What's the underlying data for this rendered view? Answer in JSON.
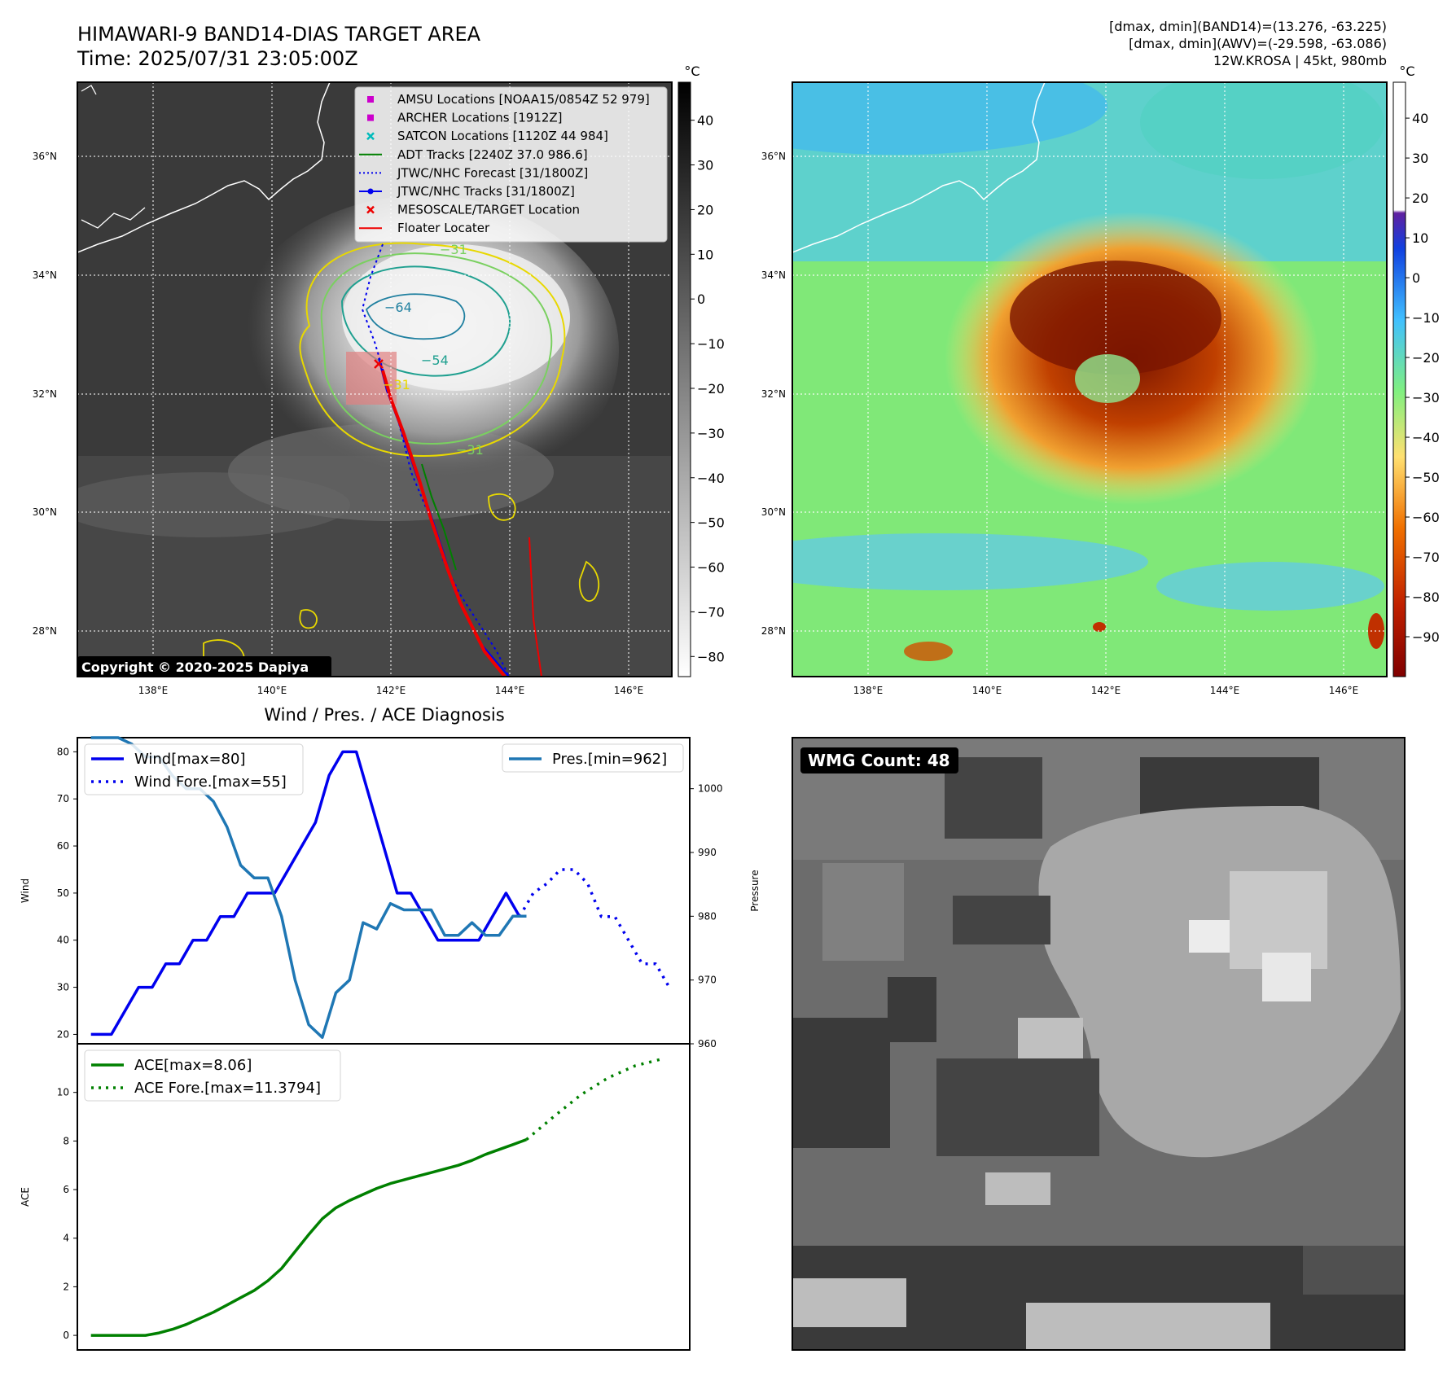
{
  "header": {
    "title_line1": "HIMAWARI-9 BAND14-DIAS TARGET AREA",
    "title_line2": "Time: 2025/07/31 23:05:00Z",
    "info_line1": "[dmax, dmin](BAND14)=(13.276, -63.225)",
    "info_line2": "[dmax, dmin](AWV)=(-29.598, -63.086)",
    "info_line3": "12W.KROSA | 45kt, 980mb"
  },
  "maps": {
    "lat_labels": [
      "36°N",
      "34°N",
      "32°N",
      "30°N",
      "28°N"
    ],
    "lon_labels": [
      "138°E",
      "140°E",
      "142°E",
      "144°E",
      "146°E"
    ],
    "copyright": "Copyright © 2020-2025 Dapiya",
    "contour_labels": [
      "−31",
      "−64",
      "−54",
      "−31",
      "−31"
    ],
    "colorbar1": {
      "unit": "°C",
      "ticks": [
        "40",
        "30",
        "20",
        "10",
        "0",
        "−10",
        "−20",
        "−30",
        "−40",
        "−50",
        "−60",
        "−70",
        "−80"
      ]
    },
    "colorbar2": {
      "unit": "°C",
      "ticks": [
        "40",
        "30",
        "20",
        "10",
        "0",
        "−10",
        "−20",
        "−30",
        "−40",
        "−50",
        "−60",
        "−70",
        "−80",
        "−90"
      ]
    },
    "legend": [
      {
        "label": "AMSU Locations [NOAA15/0854Z 52 979]",
        "marker": "square",
        "color": "#cc00cc"
      },
      {
        "label": "ARCHER Locations [1912Z]",
        "marker": "square",
        "color": "#cc00cc"
      },
      {
        "label": "SATCON Locations [1120Z 44 984]",
        "marker": "x",
        "color": "#00bbbb"
      },
      {
        "label": "ADT Tracks [2240Z 37.0 986.6]",
        "marker": "line",
        "color": "#008000"
      },
      {
        "label": "JTWC/NHC Forecast [31/1800Z]",
        "marker": "dotted",
        "color": "#0000ee"
      },
      {
        "label": "JTWC/NHC Tracks [31/1800Z]",
        "marker": "line-dot",
        "color": "#0000ee"
      },
      {
        "label": "MESOSCALE/TARGET Location",
        "marker": "x",
        "color": "#ee0000"
      },
      {
        "label": "Floater Locater",
        "marker": "line",
        "color": "#ee0000"
      }
    ]
  },
  "wmg": {
    "label": "WMG Count: 48"
  },
  "chart_data": [
    {
      "type": "line",
      "title": "Wind / Pres. / ACE Diagnosis",
      "ylabel": "Wind",
      "y2label": "Pressure",
      "ylim": [
        18,
        83
      ],
      "y2lim": [
        960,
        1008
      ],
      "yticks": [
        20,
        30,
        40,
        50,
        60,
        70,
        80
      ],
      "y2ticks": [
        960,
        970,
        980,
        990,
        1000
      ],
      "xlim": [
        -2,
        88
      ],
      "series": [
        {
          "name": "Wind[max=80]",
          "axis": "left",
          "style": "solid",
          "color": "#0000ee",
          "x": [
            0,
            3,
            5,
            7,
            9,
            11,
            13,
            15,
            17,
            19,
            21,
            23,
            25,
            27,
            29,
            31,
            33,
            35,
            37,
            39,
            41,
            43,
            45,
            47,
            49,
            51,
            53,
            55,
            57,
            59,
            61,
            63
          ],
          "values": [
            20,
            20,
            25,
            30,
            30,
            35,
            35,
            40,
            40,
            45,
            45,
            50,
            50,
            50,
            55,
            60,
            65,
            75,
            80,
            80,
            70,
            60,
            50,
            50,
            45,
            40,
            40,
            40,
            40,
            45,
            50,
            45
          ]
        },
        {
          "name": "Wind Fore.[max=55]",
          "axis": "left",
          "style": "dotted",
          "color": "#0000ee",
          "x": [
            63,
            65,
            67,
            69,
            71,
            73,
            75,
            77,
            79,
            81,
            83,
            85
          ],
          "values": [
            45,
            50,
            52,
            55,
            55,
            52,
            45,
            45,
            40,
            35,
            35,
            30
          ]
        },
        {
          "name": "Pres.[min=962]",
          "axis": "right",
          "style": "solid",
          "color": "#1f77b4",
          "x": [
            0,
            2,
            4,
            6,
            8,
            10,
            12,
            14,
            16,
            18,
            20,
            22,
            24,
            26,
            28,
            30,
            32,
            34,
            36,
            38,
            40,
            42,
            44,
            46,
            48,
            50,
            52,
            54,
            56,
            58,
            60,
            62,
            64
          ],
          "values": [
            1008,
            1008,
            1008,
            1007,
            1005,
            1005,
            1002,
            1000,
            1000,
            998,
            994,
            988,
            986,
            986,
            980,
            970,
            963,
            961,
            968,
            970,
            979,
            978,
            982,
            981,
            981,
            981,
            977,
            977,
            979,
            977,
            977,
            980,
            980
          ]
        }
      ]
    },
    {
      "type": "line",
      "ylabel": "ACE",
      "ylim": [
        -0.6,
        12
      ],
      "yticks": [
        0,
        2,
        4,
        6,
        8,
        10
      ],
      "xlim": [
        -2,
        88
      ],
      "series": [
        {
          "name": "ACE[max=8.06]",
          "style": "solid",
          "color": "#008000",
          "x": [
            0,
            4,
            8,
            10,
            12,
            14,
            16,
            18,
            20,
            22,
            24,
            26,
            28,
            30,
            32,
            34,
            36,
            38,
            40,
            42,
            44,
            46,
            48,
            50,
            52,
            54,
            56,
            58,
            60,
            62,
            64
          ],
          "values": [
            0,
            0,
            0,
            0.1,
            0.25,
            0.45,
            0.7,
            0.95,
            1.25,
            1.55,
            1.85,
            2.25,
            2.75,
            3.45,
            4.15,
            4.8,
            5.25,
            5.55,
            5.8,
            6.05,
            6.25,
            6.4,
            6.55,
            6.7,
            6.85,
            7.0,
            7.2,
            7.45,
            7.65,
            7.85,
            8.06
          ]
        },
        {
          "name": "ACE Fore.[max=11.3794]",
          "style": "dotted",
          "color": "#008000",
          "x": [
            64,
            68,
            72,
            76,
            80,
            84
          ],
          "values": [
            8.06,
            9.0,
            9.9,
            10.6,
            11.1,
            11.38
          ]
        }
      ]
    }
  ]
}
